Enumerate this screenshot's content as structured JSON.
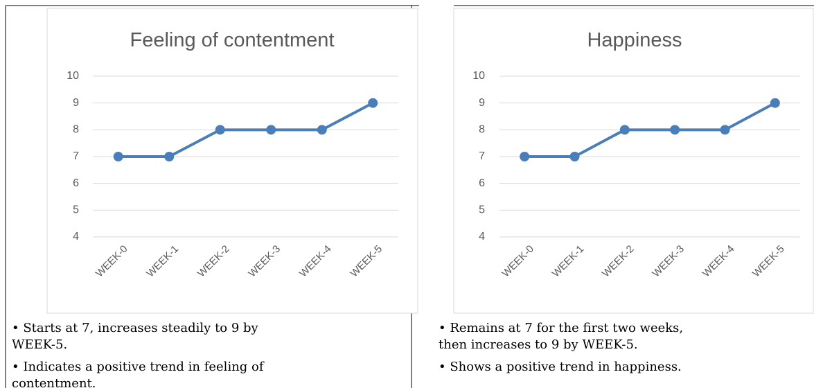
{
  "chart_data": [
    {
      "type": "line",
      "title": "Feeling of contentment",
      "categories": [
        "WEEK-0",
        "WEEK-1",
        "WEEK-2",
        "WEEK-3",
        "WEEK-4",
        "WEEK-5"
      ],
      "values": [
        7,
        7,
        8,
        8,
        8,
        9
      ],
      "color": "#4a7ebb",
      "ylim": [
        4,
        10
      ],
      "yticks": [
        4,
        5,
        6,
        7,
        8,
        9,
        10
      ],
      "grid": true
    },
    {
      "type": "line",
      "title": "Happiness",
      "categories": [
        "WEEK-0",
        "WEEK-1",
        "WEEK-2",
        "WEEK-3",
        "WEEK-4",
        "WEEK-5"
      ],
      "values": [
        7,
        7,
        8,
        8,
        8,
        9
      ],
      "color": "#4a7ebb",
      "ylim": [
        4,
        10
      ],
      "yticks": [
        4,
        5,
        6,
        7,
        8,
        9,
        10
      ],
      "grid": true
    }
  ],
  "captions": [
    [
      [
        "• Starts at 7, increases steadily to 9 by",
        "WEEK-5."
      ],
      [
        "• Indicates a positive trend in feeling of",
        "contentment."
      ]
    ],
    [
      [
        "• Remains at 7 for the first two weeks,",
        "then increases to 9 by WEEK-5."
      ],
      [
        "• Shows a positive trend in happiness."
      ]
    ]
  ]
}
